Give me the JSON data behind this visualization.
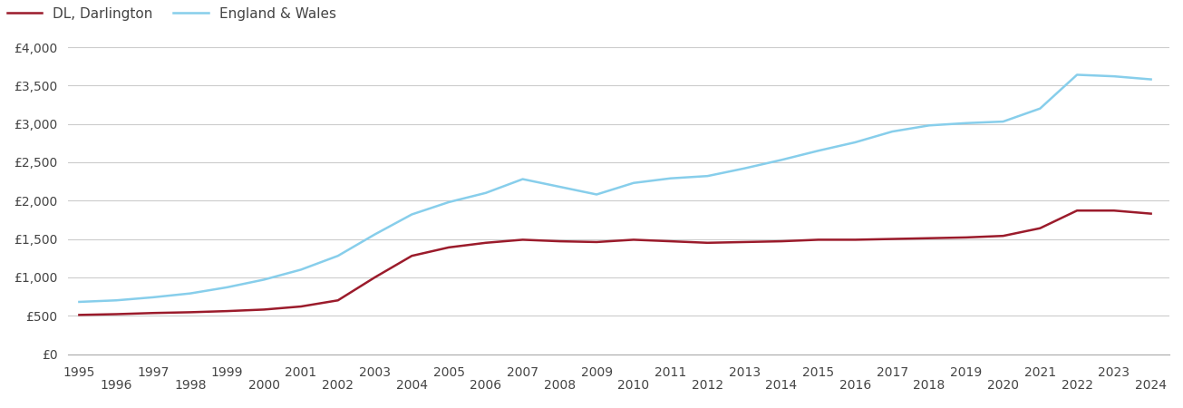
{
  "years": [
    1995,
    1996,
    1997,
    1998,
    1999,
    2000,
    2001,
    2002,
    2003,
    2004,
    2005,
    2006,
    2007,
    2008,
    2009,
    2010,
    2011,
    2012,
    2013,
    2014,
    2015,
    2016,
    2017,
    2018,
    2019,
    2020,
    2021,
    2022,
    2023,
    2024
  ],
  "darlington": [
    510,
    520,
    535,
    545,
    560,
    580,
    620,
    700,
    1000,
    1280,
    1390,
    1450,
    1490,
    1470,
    1460,
    1490,
    1470,
    1450,
    1460,
    1470,
    1490,
    1490,
    1500,
    1510,
    1520,
    1540,
    1640,
    1870,
    1870,
    1830
  ],
  "england_wales": [
    680,
    700,
    740,
    790,
    870,
    970,
    1100,
    1280,
    1560,
    1820,
    1980,
    2100,
    2280,
    2180,
    2080,
    2230,
    2290,
    2320,
    2420,
    2530,
    2650,
    2760,
    2900,
    2980,
    3010,
    3030,
    3200,
    3640,
    3620,
    3580
  ],
  "darlington_color": "#9b1b2b",
  "england_wales_color": "#87CEEB",
  "darlington_label": "DL, Darlington",
  "england_wales_label": "England & Wales",
  "ylim": [
    0,
    4000
  ],
  "yticks": [
    0,
    500,
    1000,
    1500,
    2000,
    2500,
    3000,
    3500,
    4000
  ],
  "ytick_labels": [
    "£0",
    "£500",
    "£1,000",
    "£1,500",
    "£2,000",
    "£2,500",
    "£3,000",
    "£3,500",
    "£4,000"
  ],
  "background_color": "#ffffff",
  "grid_color": "#cccccc",
  "line_width": 1.8,
  "legend_fontsize": 11,
  "tick_fontsize": 10,
  "xlim_left": 1994.7,
  "xlim_right": 2024.5
}
